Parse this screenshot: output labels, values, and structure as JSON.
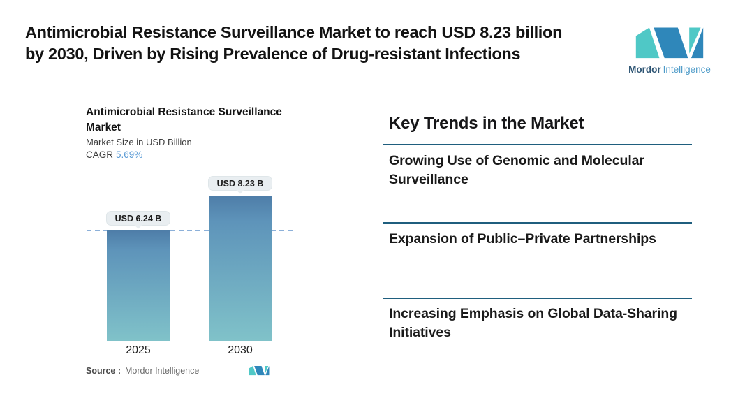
{
  "page": {
    "title_line1": "Antimicrobial Resistance Surveillance Market to reach USD 8.23 billion",
    "title_line2": "by 2030, Driven by Rising Prevalence of Drug-resistant Infections"
  },
  "brand": {
    "name_bold": "Mordor",
    "name_light": "Intelligence",
    "logo_teal": "#4fc8c6",
    "logo_blue": "#2f87ba"
  },
  "chart": {
    "title_line1": "Antimicrobial Resistance Surveillance",
    "title_line2": "Market",
    "subtitle": "Market Size in USD Billion",
    "cagr_label": "CAGR",
    "cagr_value": "5.69%",
    "source_label": "Source :",
    "source_value": "Mordor Intelligence"
  },
  "chart_data": {
    "type": "bar",
    "categories": [
      "2025",
      "2030"
    ],
    "values": [
      6.24,
      8.23
    ],
    "value_labels": [
      "USD 6.24 B",
      "USD 8.23 B"
    ],
    "title": "Antimicrobial Resistance Surveillance Market",
    "ylabel": "Market Size in USD Billion",
    "cagr_percent": 5.69,
    "reference_line_value": 6.24,
    "legend": "none",
    "grid": "off",
    "colors": {
      "bar_gradient_top": "#4e7da8",
      "bar_gradient_bottom": "#80c2c9",
      "reference_dashed_line": "#8cb0d9",
      "value_pill_bg": "#e9eef1"
    }
  },
  "trends": {
    "heading": "Key Trends in the Market",
    "divider_color": "#1f5e7e",
    "items": [
      {
        "label": "Growing Use of Genomic and Molecular Surveillance"
      },
      {
        "label": "Expansion of Public–Private Partnerships"
      },
      {
        "label": "Increasing Emphasis on Global Data-Sharing Initiatives"
      }
    ]
  }
}
